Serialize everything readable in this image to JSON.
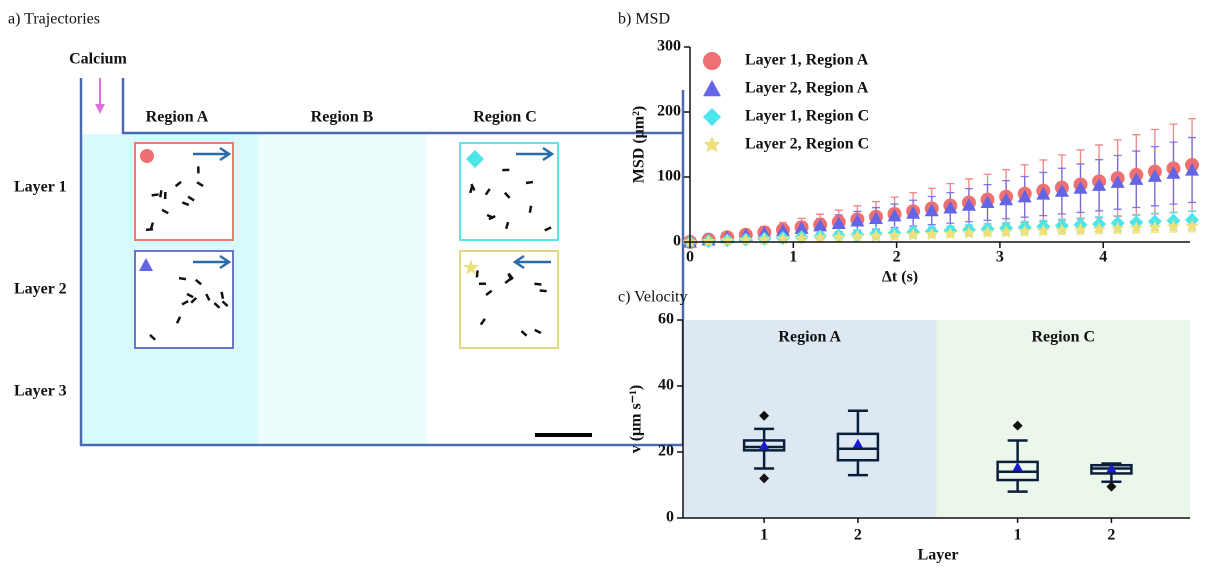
{
  "diagram": {
    "title": "a) Trajectories",
    "inlet": "Calcium",
    "regions": [
      "Region A",
      "Region B",
      "Region C"
    ],
    "layers": [
      "Layer 1",
      "Layer 2",
      "Layer 3"
    ]
  },
  "chart_data": [
    {
      "type": "scatter",
      "title": "b) MSD",
      "x_label": "Δt (s)",
      "y_label": "MSD (μm²)",
      "legend": "upper left",
      "xlim": [
        0,
        4.84
      ],
      "xticks": [
        0,
        1,
        2,
        3,
        4
      ],
      "ylim": [
        0,
        300
      ],
      "yticks": [
        0,
        100,
        200,
        300
      ],
      "x": [
        0,
        0.18,
        0.36,
        0.54,
        0.72,
        0.9,
        1.08,
        1.26,
        1.44,
        1.62,
        1.8,
        1.98,
        2.16,
        2.34,
        2.52,
        2.7,
        2.88,
        3.06,
        3.24,
        3.42,
        3.6,
        3.78,
        3.96,
        4.14,
        4.32,
        4.5,
        4.68,
        4.86
      ],
      "series": [
        {
          "name": "Layer 1, Region A",
          "color": "#ef7070",
          "marker": "circle",
          "values": [
            0,
            3.6,
            7.3,
            11.1,
            14.9,
            18.7,
            22.7,
            26.6,
            30.7,
            34.8,
            38.9,
            43.1,
            47.4,
            51.7,
            56.1,
            60.6,
            65.1,
            69.6,
            74.3,
            78.9,
            83.7,
            88.5,
            93.3,
            98.2,
            103.2,
            108.2,
            113.3,
            118.5
          ],
          "errors": [
            0,
            2.2,
            4.4,
            6.7,
            8.9,
            11.2,
            13.6,
            16,
            18.4,
            20.9,
            23.3,
            25.9,
            28.4,
            31,
            33.7,
            36.4,
            39.1,
            41.8,
            44.6,
            47.3,
            50.2,
            53.1,
            56,
            58.9,
            61.9,
            64.9,
            68,
            71.1
          ]
        },
        {
          "name": "Layer 2, Region A",
          "color": "#6464e6",
          "marker": "triangle",
          "values": [
            0,
            3.3,
            6.8,
            10.4,
            13.9,
            17.5,
            21.2,
            24.9,
            28.7,
            32.5,
            36.4,
            40.3,
            44.3,
            48.3,
            52.4,
            56.6,
            60.9,
            65.1,
            69.5,
            73.8,
            78.3,
            82.8,
            87.3,
            91.8,
            96.5,
            101.2,
            106,
            110.8
          ],
          "errors": [
            0,
            1.5,
            3.1,
            4.7,
            6.3,
            7.9,
            9.5,
            11.2,
            12.9,
            14.6,
            16.4,
            18.1,
            19.9,
            21.7,
            23.6,
            25.5,
            27.4,
            29.3,
            31.3,
            33.2,
            35.2,
            37.3,
            39.3,
            41.3,
            43.4,
            45.5,
            47.7,
            49.9
          ]
        },
        {
          "name": "Layer 1, Region C",
          "color": "#4ce6ea",
          "marker": "diamond",
          "values": [
            0,
            1.3,
            2.5,
            3.8,
            5,
            6.3,
            7.6,
            8.8,
            10.1,
            11.3,
            12.6,
            13.9,
            15.1,
            16.4,
            17.6,
            18.9,
            20.2,
            21.4,
            22.7,
            23.9,
            25.2,
            26.5,
            27.7,
            29,
            30.2,
            31.5,
            32.8,
            34
          ],
          "errors": [
            0,
            0.5,
            1,
            1.5,
            2,
            2.5,
            3,
            3.5,
            4,
            4.5,
            5,
            5.6,
            6,
            6.6,
            7,
            7.6,
            8.1,
            8.6,
            9.1,
            9.6,
            10.1,
            10.6,
            11.1,
            11.6,
            12.1,
            12.6,
            13.1,
            13.6
          ]
        },
        {
          "name": "Layer 2, Region C",
          "color": "#eee07a",
          "marker": "star",
          "values": [
            0,
            0.9,
            1.8,
            2.7,
            3.6,
            4.5,
            5.4,
            6.3,
            7.2,
            8.1,
            9,
            9.9,
            10.8,
            11.7,
            12.6,
            13.5,
            14.4,
            15.3,
            16.2,
            17.1,
            18,
            18.9,
            19.8,
            20.7,
            21.6,
            22.5,
            23.4,
            24.3
          ],
          "errors": [
            0,
            0.3,
            0.6,
            0.9,
            1.3,
            1.6,
            1.9,
            2.2,
            2.5,
            2.8,
            3.2,
            3.5,
            3.8,
            4.1,
            4.4,
            4.7,
            5,
            5.4,
            5.7,
            6,
            6.3,
            6.6,
            6.9,
            7.2,
            7.6,
            7.9,
            8.2,
            8.5
          ]
        }
      ]
    },
    {
      "type": "box",
      "title": "c) Velocity",
      "x_label": "Layer",
      "y_label": "v (μm s⁻¹)",
      "ylim": [
        0,
        60
      ],
      "yticks": [
        0,
        20,
        40,
        60
      ],
      "groups": [
        {
          "name": "Region A",
          "color": "#dde8f3",
          "categories": [
            "1",
            "2"
          ],
          "boxes": [
            {
              "min": 15,
              "q1": 20.5,
              "median": 21.5,
              "q3": 23.5,
              "max": 27,
              "mean": 22,
              "outliers": [
                12,
                31
              ]
            },
            {
              "min": 13,
              "q1": 17.5,
              "median": 21,
              "q3": 25.5,
              "max": 32.5,
              "mean": 22.5,
              "outliers": []
            }
          ]
        },
        {
          "name": "Region C",
          "color": "#eaf7ea",
          "categories": [
            "1",
            "2"
          ],
          "boxes": [
            {
              "min": 8,
              "q1": 11.5,
              "median": 14,
              "q3": 17,
              "max": 23.5,
              "mean": 15.5,
              "outliers": [
                28
              ]
            },
            {
              "min": 11,
              "q1": 13.5,
              "median": 15,
              "q3": 16,
              "max": 16.5,
              "mean": 15,
              "outliers": [
                9.5
              ]
            }
          ]
        }
      ]
    }
  ]
}
